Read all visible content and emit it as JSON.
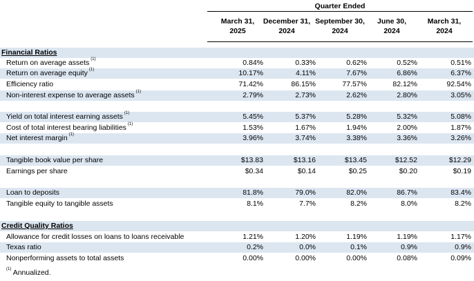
{
  "header": {
    "quarter_ended": "Quarter Ended",
    "columns": [
      {
        "line1": "March 31,",
        "line2": "2025"
      },
      {
        "line1": "December 31,",
        "line2": "2024"
      },
      {
        "line1": "September 30,",
        "line2": "2024"
      },
      {
        "line1": "June 30,",
        "line2": "2024"
      },
      {
        "line1": "March 31,",
        "line2": "2024"
      }
    ]
  },
  "sections": {
    "financial": "Financial Ratios",
    "credit": "Credit Quality Ratios"
  },
  "rows": [
    {
      "label": "Return on average assets",
      "sup": "(1)",
      "values": [
        "0.84%",
        "0.33%",
        "0.62%",
        "0.52%",
        "0.51%"
      ]
    },
    {
      "label": "Return on average equity",
      "sup": "(1)",
      "values": [
        "10.17%",
        "4.11%",
        "7.67%",
        "6.86%",
        "6.37%"
      ]
    },
    {
      "label": "Efficiency ratio",
      "sup": "",
      "values": [
        "71.42%",
        "86.15%",
        "77.57%",
        "82.12%",
        "92.54%"
      ]
    },
    {
      "label": "Non-interest expense to average assets",
      "sup": "(1)",
      "values": [
        "2.79%",
        "2.73%",
        "2.62%",
        "2.80%",
        "3.05%"
      ]
    },
    {
      "label": "Yield on total interest earning assets",
      "sup": "(1)",
      "values": [
        "5.45%",
        "5.37%",
        "5.28%",
        "5.32%",
        "5.08%"
      ]
    },
    {
      "label": "Cost of total interest bearing liabilities",
      "sup": "(1)",
      "values": [
        "1.53%",
        "1.67%",
        "1.94%",
        "2.00%",
        "1.87%"
      ]
    },
    {
      "label": "Net interest margin",
      "sup": "(1)",
      "values": [
        "3.96%",
        "3.74%",
        "3.38%",
        "3.36%",
        "3.26%"
      ]
    },
    {
      "label": "Tangible book value per share",
      "sup": "",
      "values": [
        "$13.83",
        "$13.16",
        "$13.45",
        "$12.52",
        "$12.29"
      ]
    },
    {
      "label": "Earnings per share",
      "sup": "",
      "values": [
        "$0.34",
        "$0.14",
        "$0.25",
        "$0.20",
        "$0.19"
      ]
    },
    {
      "label": "Loan to deposits",
      "sup": "",
      "values": [
        "81.8%",
        "79.0%",
        "82.0%",
        "86.7%",
        "83.4%"
      ]
    },
    {
      "label": "Tangible equity to tangible assets",
      "sup": "",
      "values": [
        "8.1%",
        "7.7%",
        "8.2%",
        "8.0%",
        "8.2%"
      ]
    },
    {
      "label": "Allowance for credit losses on loans to loans receivable",
      "sup": "",
      "values": [
        "1.21%",
        "1.20%",
        "1.19%",
        "1.19%",
        "1.17%"
      ]
    },
    {
      "label": "Texas ratio",
      "sup": "",
      "values": [
        "0.2%",
        "0.0%",
        "0.1%",
        "0.9%",
        "0.9%"
      ]
    },
    {
      "label": "Nonperforming assets to total assets",
      "sup": "",
      "values": [
        "0.00%",
        "0.00%",
        "0.00%",
        "0.08%",
        "0.09%"
      ]
    }
  ],
  "footnote": {
    "sup": "(1)",
    "text": "Annualized."
  },
  "colors": {
    "shade": "#dce6f1"
  }
}
